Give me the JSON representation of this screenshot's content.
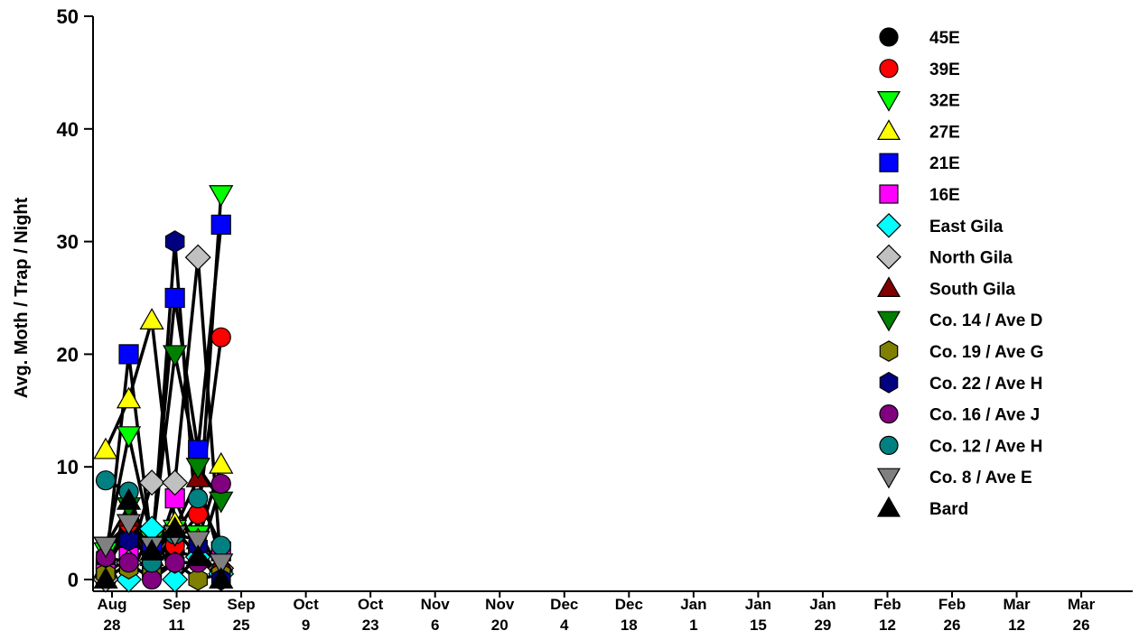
{
  "chart_data": {
    "type": "line",
    "title": "",
    "xlabel": "",
    "ylabel": "Avg. Moth / Trap / Night",
    "ylim": [
      0,
      50
    ],
    "yticks": [
      "0",
      "10",
      "20",
      "30",
      "40",
      "50"
    ],
    "xlim": [
      0,
      220
    ],
    "xticks": [
      {
        "top": "Aug",
        "bottom": "28",
        "x": 0
      },
      {
        "top": "Sep",
        "bottom": "11",
        "x": 14
      },
      {
        "top": "Sep",
        "bottom": "25",
        "x": 28
      },
      {
        "top": "Oct",
        "bottom": "9",
        "x": 42
      },
      {
        "top": "Oct",
        "bottom": "23",
        "x": 56
      },
      {
        "top": "Nov",
        "bottom": "6",
        "x": 70
      },
      {
        "top": "Nov",
        "bottom": "20",
        "x": 84
      },
      {
        "top": "Dec",
        "bottom": "4",
        "x": 98
      },
      {
        "top": "Dec",
        "bottom": "18",
        "x": 112
      },
      {
        "top": "Jan",
        "bottom": "1",
        "x": 126
      },
      {
        "top": "Jan",
        "bottom": "15",
        "x": 140
      },
      {
        "top": "Jan",
        "bottom": "29",
        "x": 154
      },
      {
        "top": "Feb",
        "bottom": "12",
        "x": 168
      },
      {
        "top": "Feb",
        "bottom": "26",
        "x": 182
      },
      {
        "top": "Mar",
        "bottom": "12",
        "x": 196
      },
      {
        "top": "Mar",
        "bottom": "26",
        "x": 210
      }
    ],
    "x_unit": "days since Aug 28",
    "x": [
      0,
      5,
      10,
      15,
      20,
      25
    ],
    "legend_position": "right",
    "series": [
      {
        "name": "45E",
        "marker": "circle",
        "color": "#000000",
        "values": [
          1.0,
          4.5,
          1.5,
          2.5,
          2.0,
          0.5
        ]
      },
      {
        "name": "39E",
        "marker": "circle",
        "color": "#ff0000",
        "values": [
          1.5,
          5.0,
          2.0,
          3.0,
          5.8,
          21.5
        ]
      },
      {
        "name": "32E",
        "marker": "triangle-down",
        "color": "#00ff00",
        "values": [
          2.5,
          12.8,
          3.5,
          4.5,
          4.0,
          34.2
        ]
      },
      {
        "name": "27E",
        "marker": "triangle-up",
        "color": "#ffff00",
        "values": [
          11.5,
          16.0,
          23.0,
          5.0,
          3.5,
          10.2
        ]
      },
      {
        "name": "21E",
        "marker": "square",
        "color": "#0000ff",
        "values": [
          1.0,
          20.0,
          3.0,
          25.0,
          11.5,
          31.5
        ]
      },
      {
        "name": "16E",
        "marker": "square",
        "color": "#ff00ff",
        "values": [
          0.5,
          2.0,
          1.0,
          7.2,
          2.0,
          2.5
        ]
      },
      {
        "name": "East Gila",
        "marker": "diamond",
        "color": "#00ffff",
        "values": [
          0.0,
          0.0,
          4.5,
          0.0,
          2.0,
          0.5
        ]
      },
      {
        "name": "North Gila",
        "marker": "diamond",
        "color": "#c0c0c0",
        "values": [
          0.0,
          1.5,
          8.6,
          8.6,
          28.6,
          1.0
        ]
      },
      {
        "name": "South Gila",
        "marker": "triangle-up",
        "color": "#800000",
        "values": [
          1.0,
          5.5,
          2.0,
          4.5,
          9.0,
          1.5
        ]
      },
      {
        "name": "Co. 14 / Ave D",
        "marker": "triangle-down",
        "color": "#008000",
        "values": [
          3.0,
          6.5,
          3.0,
          20.0,
          10.0,
          7.0
        ]
      },
      {
        "name": "Co. 19 / Ave G",
        "marker": "hexagon",
        "color": "#808000",
        "values": [
          0.5,
          1.0,
          0.5,
          1.5,
          0.0,
          0.5
        ]
      },
      {
        "name": "Co. 22 / Ave H",
        "marker": "hexagon",
        "color": "#000080",
        "values": [
          2.0,
          3.5,
          2.0,
          30.0,
          3.0,
          0.0
        ]
      },
      {
        "name": "Co. 16 / Ave J",
        "marker": "circle",
        "color": "#800080",
        "values": [
          2.0,
          1.5,
          0.0,
          1.5,
          1.5,
          8.5
        ]
      },
      {
        "name": "Co. 12 / Ave H",
        "marker": "circle",
        "color": "#008080",
        "values": [
          8.8,
          7.8,
          1.5,
          4.0,
          7.2,
          3.0
        ]
      },
      {
        "name": "Co. 8 / Ave E",
        "marker": "triangle-down",
        "color": "#808080",
        "values": [
          3.0,
          5.0,
          3.0,
          4.0,
          3.5,
          1.5
        ]
      },
      {
        "name": "Bard",
        "marker": "triangle-up",
        "color": "#000000",
        "values": [
          0.0,
          7.0,
          2.5,
          4.5,
          2.0,
          0.0
        ]
      }
    ]
  }
}
